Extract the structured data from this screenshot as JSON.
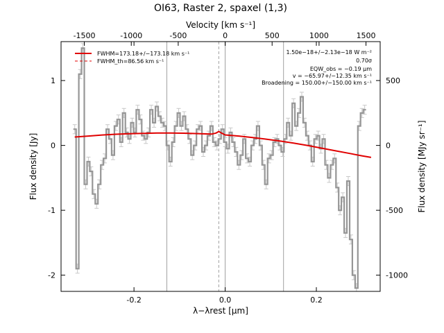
{
  "chart_data": {
    "type": "line",
    "title": "OI63, Raster 2, spaxel (1,3)",
    "xlabel": "λ−λrest [μm]",
    "ylabel": "Flux density [Jy]",
    "x2label": "Velocity [km s⁻¹]",
    "y2label": "Flux density [MJy sr⁻¹]",
    "xlim": [
      -0.36,
      0.34
    ],
    "ylim": [
      -2.25,
      1.6
    ],
    "vlim": [
      -1748,
      1651
    ],
    "y2lim": [
      -1125,
      800
    ],
    "x_ticks": [
      "-0.2",
      "0.0",
      "0.2"
    ],
    "x_tick_values": [
      -0.2,
      0.0,
      0.2
    ],
    "y_ticks": [
      "-2",
      "-1",
      "0",
      "1"
    ],
    "y_tick_values": [
      -2,
      -1,
      0,
      1
    ],
    "v_ticks": [
      "-1500",
      "-1000",
      "-500",
      "0",
      "500",
      "1000",
      "1500"
    ],
    "v_tick_values": [
      -1500,
      -1000,
      -500,
      0,
      500,
      1000,
      1500
    ],
    "y2_ticks": [
      "-1000",
      "-500",
      "0",
      "500"
    ],
    "y2_tick_values": [
      -1000,
      -500,
      0,
      500
    ],
    "legend": [
      {
        "label": "FWHM=173.18+/−173.18 km s⁻¹",
        "style": "solid",
        "color": "#e00000"
      },
      {
        "label": "FWHM_th=86.56 km s⁻¹",
        "style": "dashed",
        "color": "#e00000"
      }
    ],
    "annotations": [
      "1.50e−18+/−2.13e−18 W m⁻²",
      "0.70σ",
      "EQW_obs = −0.19 μm",
      "v = −65.97+/−12.35 km s⁻¹",
      "Broadening = 150.00+/−150.00 km s⁻¹"
    ],
    "vertical_lines": [
      -0.128,
      0.0,
      0.128
    ],
    "rest_line": -0.014,
    "series": [
      {
        "style": "step",
        "color": "#969696",
        "error_bar": 0.07,
        "x": [
          -0.33,
          -0.324,
          -0.318,
          -0.312,
          -0.306,
          -0.3,
          -0.294,
          -0.288,
          -0.282,
          -0.276,
          -0.27,
          -0.264,
          -0.258,
          -0.252,
          -0.246,
          -0.24,
          -0.234,
          -0.228,
          -0.222,
          -0.216,
          -0.21,
          -0.204,
          -0.198,
          -0.192,
          -0.186,
          -0.18,
          -0.174,
          -0.168,
          -0.162,
          -0.156,
          -0.15,
          -0.144,
          -0.138,
          -0.132,
          -0.126,
          -0.12,
          -0.114,
          -0.108,
          -0.102,
          -0.096,
          -0.09,
          -0.084,
          -0.078,
          -0.072,
          -0.066,
          -0.06,
          -0.054,
          -0.048,
          -0.042,
          -0.036,
          -0.03,
          -0.024,
          -0.018,
          -0.012,
          -0.006,
          0.0,
          0.006,
          0.012,
          0.018,
          0.024,
          0.03,
          0.036,
          0.042,
          0.048,
          0.054,
          0.06,
          0.066,
          0.072,
          0.078,
          0.084,
          0.09,
          0.096,
          0.102,
          0.108,
          0.114,
          0.12,
          0.126,
          0.132,
          0.138,
          0.144,
          0.15,
          0.156,
          0.162,
          0.168,
          0.174,
          0.18,
          0.186,
          0.192,
          0.198,
          0.204,
          0.21,
          0.216,
          0.222,
          0.228,
          0.234,
          0.24,
          0.246,
          0.252,
          0.258,
          0.264,
          0.27,
          0.276,
          0.282,
          0.288,
          0.294,
          0.3,
          0.306
        ],
        "y": [
          0.25,
          -1.9,
          1.1,
          1.5,
          -0.6,
          -0.25,
          -0.4,
          -0.75,
          -0.9,
          -0.6,
          -0.3,
          -0.2,
          0.25,
          0.1,
          -0.15,
          0.3,
          0.4,
          0.05,
          0.5,
          0.2,
          0.1,
          0.35,
          0.2,
          0.55,
          0.4,
          0.15,
          0.1,
          0.2,
          0.55,
          0.35,
          0.6,
          0.45,
          0.35,
          0.3,
          0.0,
          -0.25,
          0.05,
          0.3,
          0.5,
          0.3,
          0.45,
          0.25,
          0.1,
          -0.15,
          0.0,
          0.25,
          0.3,
          -0.1,
          0.0,
          0.15,
          0.3,
          0.05,
          0.0,
          0.1,
          0.25,
          0.05,
          -0.05,
          0.2,
          0.05,
          -0.1,
          -0.3,
          -0.15,
          0.1,
          -0.2,
          -0.25,
          0.0,
          0.1,
          0.3,
          0.0,
          -0.3,
          -0.6,
          -0.2,
          -0.15,
          0.05,
          0.1,
          0.0,
          -0.1,
          0.1,
          0.35,
          0.15,
          0.65,
          0.3,
          0.5,
          0.75,
          0.35,
          0.15,
          0.0,
          -0.25,
          0.1,
          0.15,
          -0.05,
          0.1,
          -0.3,
          -0.5,
          -0.3,
          -0.2,
          -0.65,
          -1.0,
          -0.8,
          -1.35,
          -0.55,
          -1.45,
          -2.0,
          -2.2,
          0.3,
          0.5,
          0.55
        ]
      },
      {
        "style": "line",
        "color": "#e00000",
        "x": [
          -0.33,
          -0.3,
          -0.27,
          -0.24,
          -0.21,
          -0.18,
          -0.15,
          -0.12,
          -0.09,
          -0.06,
          -0.03,
          -0.02,
          -0.014,
          -0.008,
          0.0,
          0.03,
          0.06,
          0.09,
          0.12,
          0.15,
          0.18,
          0.21,
          0.24,
          0.27,
          0.3,
          0.32
        ],
        "y": [
          0.13,
          0.145,
          0.16,
          0.172,
          0.18,
          0.186,
          0.19,
          0.19,
          0.188,
          0.182,
          0.174,
          0.19,
          0.215,
          0.19,
          0.162,
          0.145,
          0.122,
          0.096,
          0.068,
          0.035,
          0.0,
          -0.04,
          -0.08,
          -0.12,
          -0.16,
          -0.185
        ]
      }
    ]
  }
}
